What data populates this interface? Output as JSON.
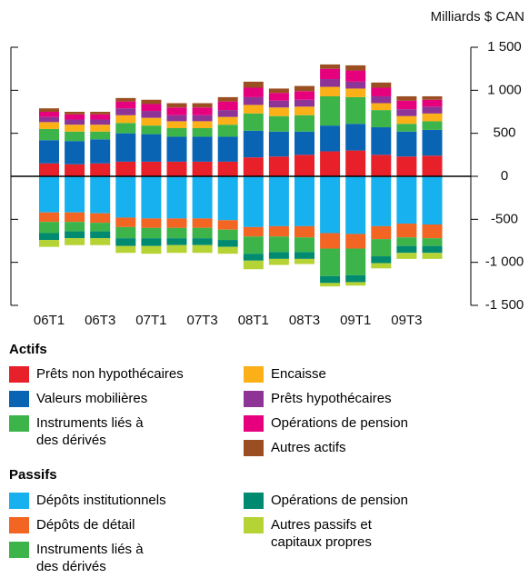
{
  "chart_data": {
    "type": "bar",
    "stacked": true,
    "y_axis_label": "Milliards $ CAN",
    "categories": [
      "06T1",
      null,
      "06T3",
      null,
      "07T1",
      null,
      "07T3",
      null,
      "08T1",
      null,
      "08T3",
      null,
      "09T1",
      null,
      "09T3",
      null
    ],
    "ylim": [
      -1500,
      1500
    ],
    "yticks": [
      {
        "value": 1500,
        "label": "1 500"
      },
      {
        "value": 1000,
        "label": "1 000"
      },
      500,
      0,
      -500,
      {
        "value": -1000,
        "label": "-1 000"
      },
      {
        "value": -1500,
        "label": "-1 500"
      }
    ],
    "groups": [
      {
        "name": "Actifs",
        "series": [
          {
            "name": "Prêts non hypothécaires",
            "color": "#e8202a",
            "values": [
              150,
              140,
              150,
              170,
              170,
              170,
              170,
              170,
              220,
              230,
              250,
              290,
              300,
              250,
              230,
              240
            ]
          },
          {
            "name": "Valeurs mobilières",
            "color": "#0a64b4",
            "values": [
              270,
              270,
              280,
              330,
              320,
              290,
              290,
              290,
              310,
              290,
              270,
              300,
              310,
              320,
              290,
              300
            ]
          },
          {
            "name": "Instruments liés à des dérivés",
            "color": "#3cb44a",
            "values": [
              130,
              110,
              90,
              120,
              100,
              100,
              100,
              140,
              200,
              180,
              190,
              340,
              310,
              200,
              90,
              100
            ]
          },
          {
            "name": "Encaisse",
            "color": "#fbb018",
            "values": [
              80,
              80,
              80,
              90,
              90,
              80,
              80,
              90,
              100,
              100,
              100,
              110,
              100,
              80,
              90,
              90
            ]
          },
          {
            "name": "Prêts hypothécaires",
            "color": "#8e3496",
            "values": [
              60,
              60,
              60,
              80,
              80,
              70,
              70,
              80,
              90,
              80,
              80,
              90,
              80,
              80,
              80,
              80
            ]
          },
          {
            "name": "Opérations de pension",
            "color": "#e6007e",
            "values": [
              60,
              60,
              60,
              80,
              80,
              90,
              90,
              100,
              110,
              90,
              100,
              120,
              130,
              100,
              100,
              80
            ]
          },
          {
            "name": "Autres actifs",
            "color": "#9a4e22",
            "values": [
              40,
              30,
              30,
              40,
              50,
              50,
              50,
              50,
              70,
              50,
              60,
              50,
              60,
              60,
              50,
              40
            ]
          }
        ]
      },
      {
        "name": "Passifs",
        "series": [
          {
            "name": "Dépôts institutionnels",
            "color": "#16b1ee",
            "values": [
              -420,
              -420,
              -430,
              -480,
              -490,
              -490,
              -490,
              -510,
              -590,
              -580,
              -580,
              -660,
              -670,
              -580,
              -550,
              -560
            ]
          },
          {
            "name": "Dépôts de détail",
            "color": "#f26522",
            "values": [
              -110,
              -110,
              -110,
              -110,
              -110,
              -110,
              -110,
              -110,
              -110,
              -120,
              -130,
              -180,
              -170,
              -150,
              -160,
              -160
            ]
          },
          {
            "name": "Instruments liés à des dérivés",
            "color": "#3cb44a",
            "values": [
              -130,
              -110,
              -100,
              -130,
              -120,
              -120,
              -120,
              -120,
              -200,
              -180,
              -170,
              -320,
              -310,
              -200,
              -100,
              -90
            ]
          },
          {
            "name": "Opérations de pension",
            "color": "#008a70",
            "values": [
              -80,
              -80,
              -80,
              -90,
              -90,
              -80,
              -80,
              -80,
              -80,
              -80,
              -80,
              -80,
              -80,
              -80,
              -80,
              -80
            ]
          },
          {
            "name": "Autres passifs et capitaux propres",
            "color": "#b5d334",
            "values": [
              -80,
              -80,
              -80,
              -80,
              -90,
              -90,
              -90,
              -80,
              -100,
              -70,
              -60,
              -40,
              -40,
              -60,
              -70,
              -70
            ]
          }
        ]
      }
    ]
  }
}
